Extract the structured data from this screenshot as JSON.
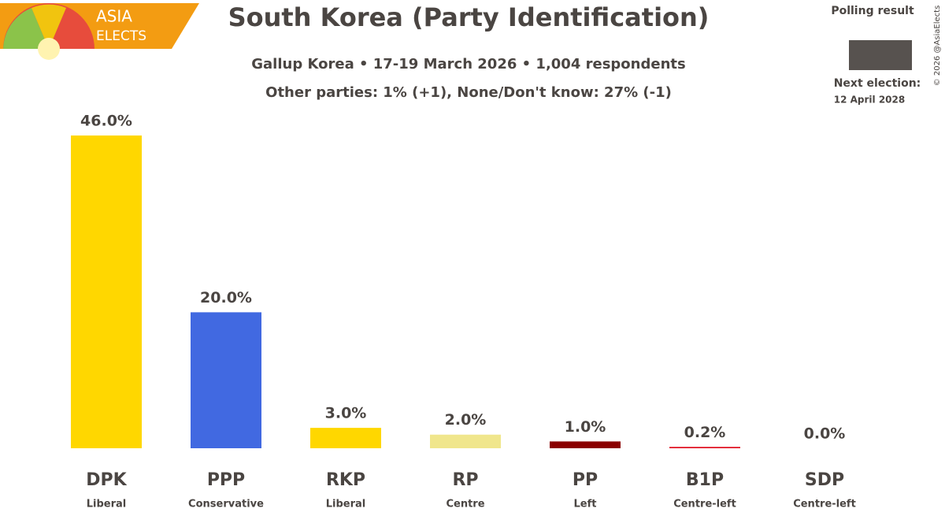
{
  "chart_data": {
    "type": "bar",
    "title": "South Korea (Party Identification)",
    "subtitle": "Gallup Korea • 17-19 March 2026 • 1,004 respondents",
    "subtitle2": "Other parties: 1% (+1), None/Don't know: 27% (-1)",
    "logo": [
      "ASIA",
      "ELECTS"
    ],
    "legend": {
      "label": "Polling result",
      "color": "#57524f"
    },
    "next_election": {
      "label": "Next election:",
      "date": "12 April 2028"
    },
    "credit": "© 2026 @AsiaElects",
    "categories": [
      "DPK",
      "PPP",
      "RKP",
      "RP",
      "PP",
      "B1P",
      "SDP"
    ],
    "ideologies": [
      "Liberal",
      "Conservative",
      "Liberal",
      "Centre",
      "Left",
      "Centre-left",
      "Centre-left"
    ],
    "values": [
      46.0,
      20.0,
      3.0,
      2.0,
      1.0,
      0.2,
      0.0
    ],
    "value_labels": [
      "46.0%",
      "20.0%",
      "3.0%",
      "2.0%",
      "1.0%",
      "0.2%",
      "0.0%"
    ],
    "colors": [
      "#ffd700",
      "#4169e1",
      "#ffd700",
      "#f0e68c",
      "#8b0000",
      "#e01020",
      "#e06080"
    ]
  }
}
